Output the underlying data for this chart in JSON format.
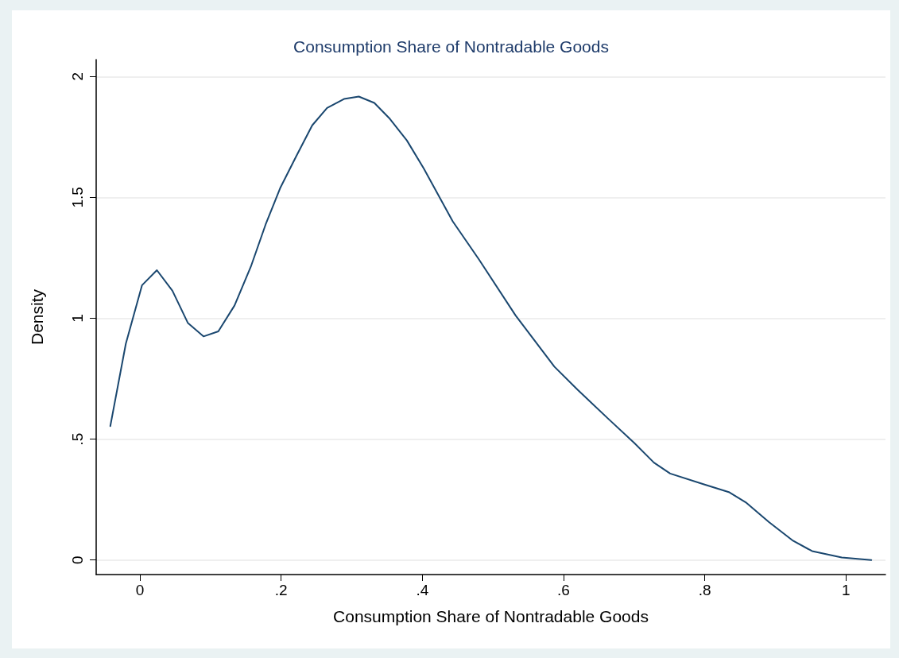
{
  "chart_data": {
    "type": "line",
    "title": "Consumption Share of Nontradable Goods",
    "xlabel": "Consumption Share of Nontradable Goods",
    "ylabel": "Density",
    "x": [
      -0.042,
      -0.02,
      0.003,
      0.024,
      0.046,
      0.068,
      0.09,
      0.111,
      0.134,
      0.157,
      0.178,
      0.199,
      0.221,
      0.244,
      0.265,
      0.289,
      0.31,
      0.332,
      0.354,
      0.378,
      0.402,
      0.443,
      0.48,
      0.532,
      0.587,
      0.62,
      0.662,
      0.7,
      0.728,
      0.751,
      0.798,
      0.835,
      0.858,
      0.891,
      0.924,
      0.952,
      0.994,
      1.036
    ],
    "series": [
      {
        "color": "#1a476f",
        "values": [
          0.554,
          0.895,
          1.137,
          1.199,
          1.114,
          0.98,
          0.925,
          0.946,
          1.053,
          1.213,
          1.388,
          1.541,
          1.668,
          1.798,
          1.87,
          1.907,
          1.917,
          1.891,
          1.825,
          1.736,
          1.62,
          1.401,
          1.244,
          1.012,
          0.8,
          0.704,
          0.588,
          0.485,
          0.403,
          0.358,
          0.314,
          0.28,
          0.239,
          0.157,
          0.082,
          0.037,
          0.011,
          0.0
        ]
      }
    ],
    "xlim": [
      -0.062,
      1.056
    ],
    "ylim": [
      -0.06,
      2.07
    ],
    "xticks": [
      0,
      {
        "value": 0.2,
        "label": ".2"
      },
      {
        "value": 0.4,
        "label": ".4"
      },
      {
        "value": 0.6,
        "label": ".6"
      },
      {
        "value": 0.8,
        "label": ".8"
      },
      1
    ],
    "yticks": [
      0,
      {
        "value": 0.5,
        "label": ".5"
      },
      1,
      1.5,
      2
    ],
    "grid": "y",
    "marker": "none",
    "line_style": "solid"
  }
}
